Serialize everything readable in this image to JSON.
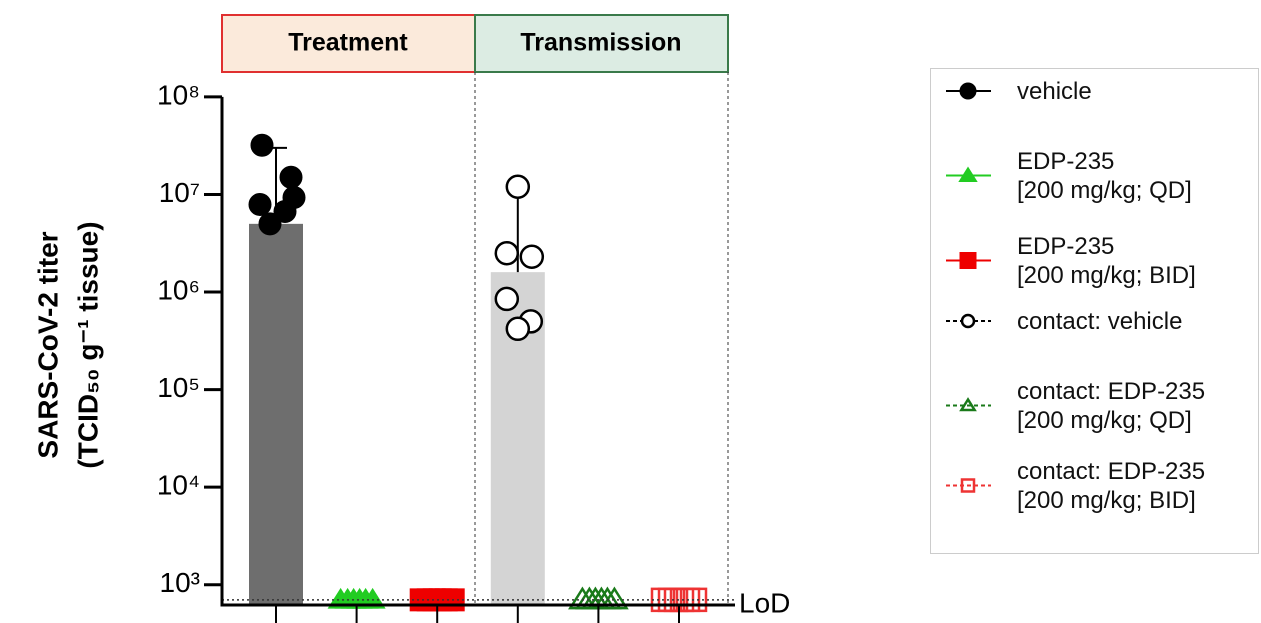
{
  "chart_data": {
    "type": "bar",
    "log_y": true,
    "ylabel": [
      "SARS-CoV-2 titer",
      "(TCID₅₀ g⁻¹ tissue)"
    ],
    "panels": [
      "Treatment",
      "Transmission"
    ],
    "lod": {
      "label": "LoD",
      "value": 700
    },
    "categories": [
      null,
      null,
      null,
      null,
      null,
      null
    ],
    "bars": {
      "values": [
        5000000,
        null,
        null,
        1600000,
        null,
        null
      ],
      "errors": [
        25000000,
        null,
        null,
        9400000,
        null,
        null
      ],
      "colors": [
        "#6e6e6e",
        null,
        null,
        "#d4d4d4",
        null,
        null
      ]
    },
    "series": [
      {
        "name": "vehicle",
        "color": "#000000",
        "marker": "circle",
        "filled": true,
        "dashed": false,
        "values": [
          32000000,
          15000000,
          9300000,
          7900000,
          6700000,
          5000000
        ]
      },
      {
        "name": "EDP-235\n[200 mg/kg; QD]",
        "color": "#22cc22",
        "marker": "triangle",
        "filled": true,
        "dashed": false,
        "values": [
          700,
          700,
          700,
          700,
          700,
          700
        ]
      },
      {
        "name": "EDP-235\n[200 mg/kg; BID]",
        "color": "#ee0000",
        "marker": "square",
        "filled": true,
        "dashed": false,
        "values": [
          700,
          700,
          700,
          700,
          700,
          700
        ]
      },
      {
        "name": "contact: vehicle",
        "color": "#000000",
        "marker": "circle",
        "filled": false,
        "dashed": true,
        "values": [
          12000000,
          2500000,
          2300000,
          850000,
          500000,
          420000
        ]
      },
      {
        "name": "contact: EDP-235\n[200 mg/kg; QD]",
        "color": "#1a7a1a",
        "marker": "triangle",
        "filled": false,
        "dashed": true,
        "values": [
          700,
          700,
          700,
          700,
          700,
          700
        ]
      },
      {
        "name": "contact: EDP-235\n[200 mg/kg; BID]",
        "color": "#ee3333",
        "marker": "square",
        "filled": false,
        "dashed": true,
        "values": [
          700,
          700,
          700,
          700,
          700,
          700
        ]
      }
    ],
    "ylim": [
      620,
      180000000
    ],
    "yticks": [
      {
        "value": 1000,
        "label": "10³"
      },
      {
        "value": 10000,
        "label": "10⁴"
      },
      {
        "value": 100000,
        "label": "10⁵"
      },
      {
        "value": 1000000,
        "label": "10⁶"
      },
      {
        "value": 10000000,
        "label": "10⁷"
      },
      {
        "value": 100000000,
        "label": "10⁸"
      }
    ]
  }
}
